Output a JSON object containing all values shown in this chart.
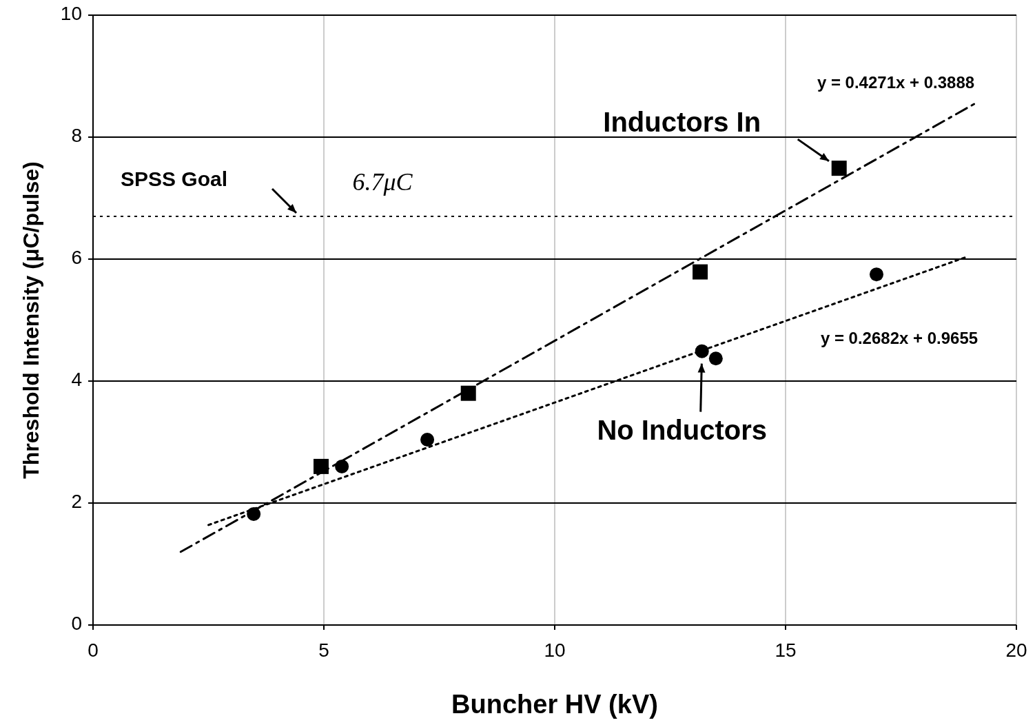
{
  "chart_data": {
    "type": "scatter",
    "xlabel": "Buncher HV (kV)",
    "ylabel": "Threshold Intensity (μC/pulse)",
    "xlim": [
      0,
      20
    ],
    "ylim": [
      0,
      10
    ],
    "xticks": [
      0,
      5,
      10,
      15,
      20
    ],
    "yticks": [
      0,
      2,
      4,
      6,
      8,
      10
    ],
    "grid": true,
    "series": [
      {
        "name": "Inductors In",
        "color": "#000000",
        "marker": "square",
        "x": [
          4.94,
          8.13,
          13.15,
          16.16
        ],
        "values": [
          2.6,
          3.8,
          5.79,
          7.49
        ]
      },
      {
        "name": "No Inductors",
        "color": "#000000",
        "marker": "circle",
        "x": [
          3.48,
          5.39,
          7.24,
          13.19,
          13.49,
          16.97
        ],
        "values": [
          1.82,
          2.6,
          3.04,
          4.49,
          4.37,
          5.75
        ]
      },
      {
        "type": "line",
        "color": "#000000",
        "line_style": "dashed",
        "x": [
          1.9,
          19.1
        ],
        "values": [
          1.2,
          8.55
        ]
      },
      {
        "type": "line",
        "color": "#000000",
        "line_style": "dotted",
        "x": [
          2.5,
          18.9
        ],
        "values": [
          1.64,
          6.03
        ]
      }
    ],
    "ref_lines": [
      {
        "axis": "y",
        "value": 6.7,
        "label": "SPSS Goal",
        "line_style": "dotted",
        "color": "#000000"
      }
    ],
    "annotations": [
      "y = 0.4271x + 0.3888",
      "y = 0.2682x + 0.9655",
      "6.7μC"
    ]
  }
}
